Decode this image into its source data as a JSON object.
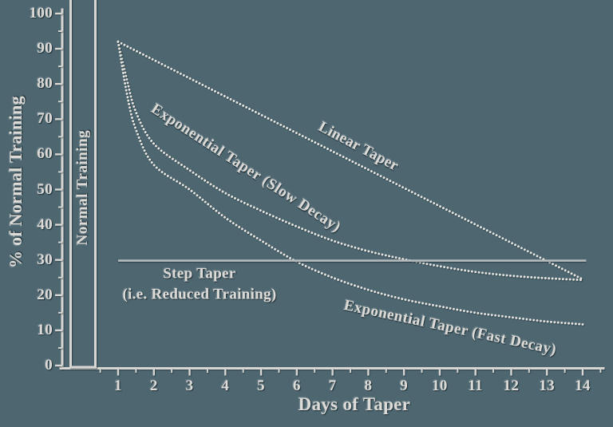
{
  "background_color": "#4d6670",
  "ink_color": "#dddbd7",
  "chart_data": {
    "type": "line",
    "title": "",
    "xlabel": "Days of Taper",
    "ylabel": "% of Normal Training",
    "xlim": [
      0,
      14.5
    ],
    "ylim": [
      0,
      100
    ],
    "x_ticks": [
      1,
      2,
      3,
      4,
      5,
      6,
      7,
      8,
      9,
      10,
      11,
      12,
      13,
      14
    ],
    "y_ticks": [
      0,
      10,
      20,
      30,
      40,
      50,
      60,
      70,
      80,
      90,
      100
    ],
    "grid": false,
    "legend": "labels drawn along curves",
    "normal_training_bar": {
      "label": "Normal Training",
      "value": 100,
      "position": "pre-taper column at left of plot"
    },
    "series": [
      {
        "name": "Linear Taper",
        "style": "dotted",
        "x": [
          1,
          14
        ],
        "values": [
          92,
          24.5
        ]
      },
      {
        "name": "Exponential Taper (Slow Decay)",
        "style": "dotted",
        "x": [
          1,
          1.25,
          1.5,
          2,
          3,
          4,
          5,
          6,
          7,
          8,
          9,
          10,
          11,
          12,
          13,
          14
        ],
        "values": [
          92,
          81,
          72,
          63,
          55.5,
          49,
          44,
          39.5,
          35.5,
          32.5,
          30.2,
          28.2,
          26.6,
          25.5,
          24.8,
          24.3
        ]
      },
      {
        "name": "Exponential Taper (Fast Decay)",
        "style": "dotted",
        "x": [
          1,
          1.25,
          1.5,
          2,
          3,
          4,
          5,
          6,
          7,
          8,
          9,
          10,
          11,
          12,
          13,
          14
        ],
        "values": [
          92,
          77,
          67,
          57,
          50,
          42,
          35.5,
          29.5,
          25,
          21.5,
          18.8,
          16.8,
          15,
          13.7,
          12.5,
          11.7
        ]
      },
      {
        "name": "Step Taper (i.e. Reduced Training)",
        "style": "solid",
        "x": [
          1,
          14.1
        ],
        "values": [
          29.8,
          29.8
        ]
      }
    ]
  },
  "labels": {
    "step_line1": "Step Taper",
    "step_line2": "(i.e. Reduced Training)"
  }
}
